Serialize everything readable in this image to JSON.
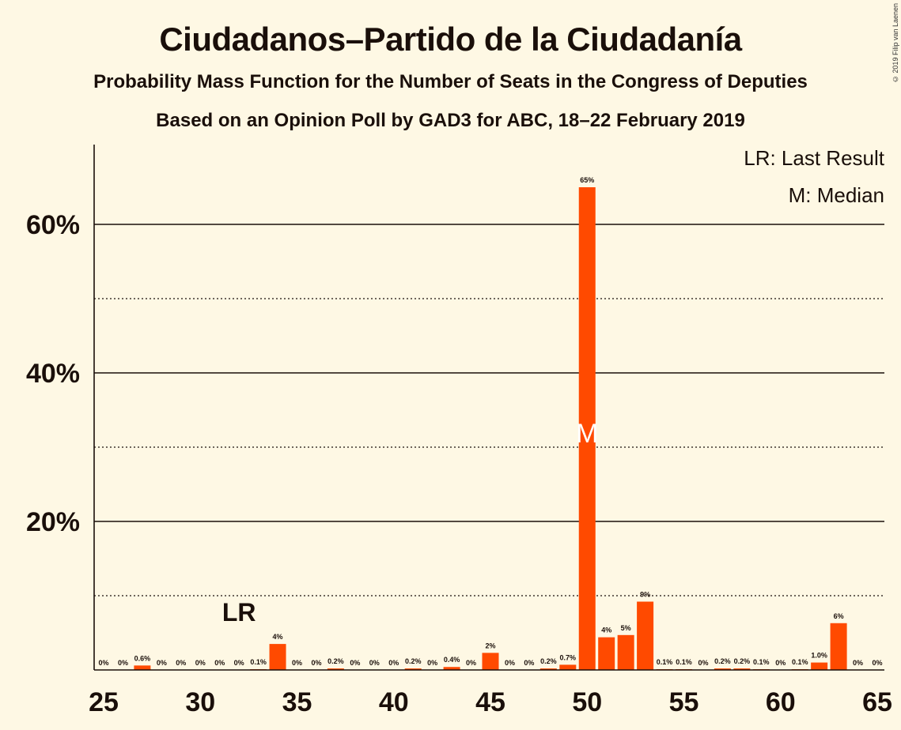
{
  "title": "Ciudadanos–Partido de la Ciudadanía",
  "subtitle": "Probability Mass Function for the Number of Seats in the Congress of Deputies",
  "subtitle2": "Based on an Opinion Poll by GAD3 for ABC, 18–22 February 2019",
  "copyright": "© 2019 Filip van Laenen",
  "colors": {
    "bar": "#ff4a00",
    "background": "#fef8e4",
    "text": "#1a0f0a"
  },
  "chart_data": {
    "type": "bar",
    "x": [
      25,
      26,
      27,
      28,
      29,
      30,
      31,
      32,
      33,
      34,
      35,
      36,
      37,
      38,
      39,
      40,
      41,
      42,
      43,
      44,
      45,
      46,
      47,
      48,
      49,
      50,
      51,
      52,
      53,
      54,
      55,
      56,
      57,
      58,
      59,
      60,
      61,
      62,
      63,
      64,
      65
    ],
    "values": [
      0,
      0,
      0.6,
      0,
      0,
      0,
      0,
      0,
      0.1,
      3.5,
      0,
      0,
      0.2,
      0,
      0,
      0,
      0.2,
      0,
      0.4,
      0,
      2.3,
      0,
      0,
      0.2,
      0.7,
      65,
      4.4,
      4.7,
      9.2,
      0.1,
      0.1,
      0,
      0.2,
      0.2,
      0.1,
      0,
      0.1,
      1.0,
      6.3,
      0,
      0
    ],
    "data_labels": [
      "0%",
      "0%",
      "0.6%",
      "0%",
      "0%",
      "0%",
      "0%",
      "0%",
      "0.1%",
      "4%",
      "0%",
      "0%",
      "0.2%",
      "0%",
      "0%",
      "0%",
      "0.2%",
      "0%",
      "0.4%",
      "0%",
      "2%",
      "0%",
      "0%",
      "0.2%",
      "0.7%",
      "65%",
      "4%",
      "5%",
      "9%",
      "0.1%",
      "0.1%",
      "0%",
      "0.2%",
      "0.2%",
      "0.1%",
      "0%",
      "0.1%",
      "1.0%",
      "6%",
      "0%",
      "0%"
    ],
    "xticks": [
      25,
      30,
      35,
      40,
      45,
      50,
      55,
      60,
      65
    ],
    "xtick_labels": [
      "25",
      "30",
      "35",
      "40",
      "45",
      "50",
      "55",
      "60",
      "65"
    ],
    "yticks": [
      20,
      40,
      60
    ],
    "ytick_labels": [
      "20%",
      "40%",
      "60%"
    ],
    "ylim": [
      0,
      70
    ],
    "xlim": [
      24.5,
      65.5
    ],
    "grid_solid": [
      20,
      40,
      60
    ],
    "grid_dotted": [
      10,
      30,
      50
    ],
    "last_result": {
      "seat": 32,
      "label": "LR"
    },
    "median": {
      "seat": 50,
      "label": "M"
    },
    "legend": [
      "LR: Last Result",
      "M: Median"
    ],
    "legend_position": "top-right"
  }
}
